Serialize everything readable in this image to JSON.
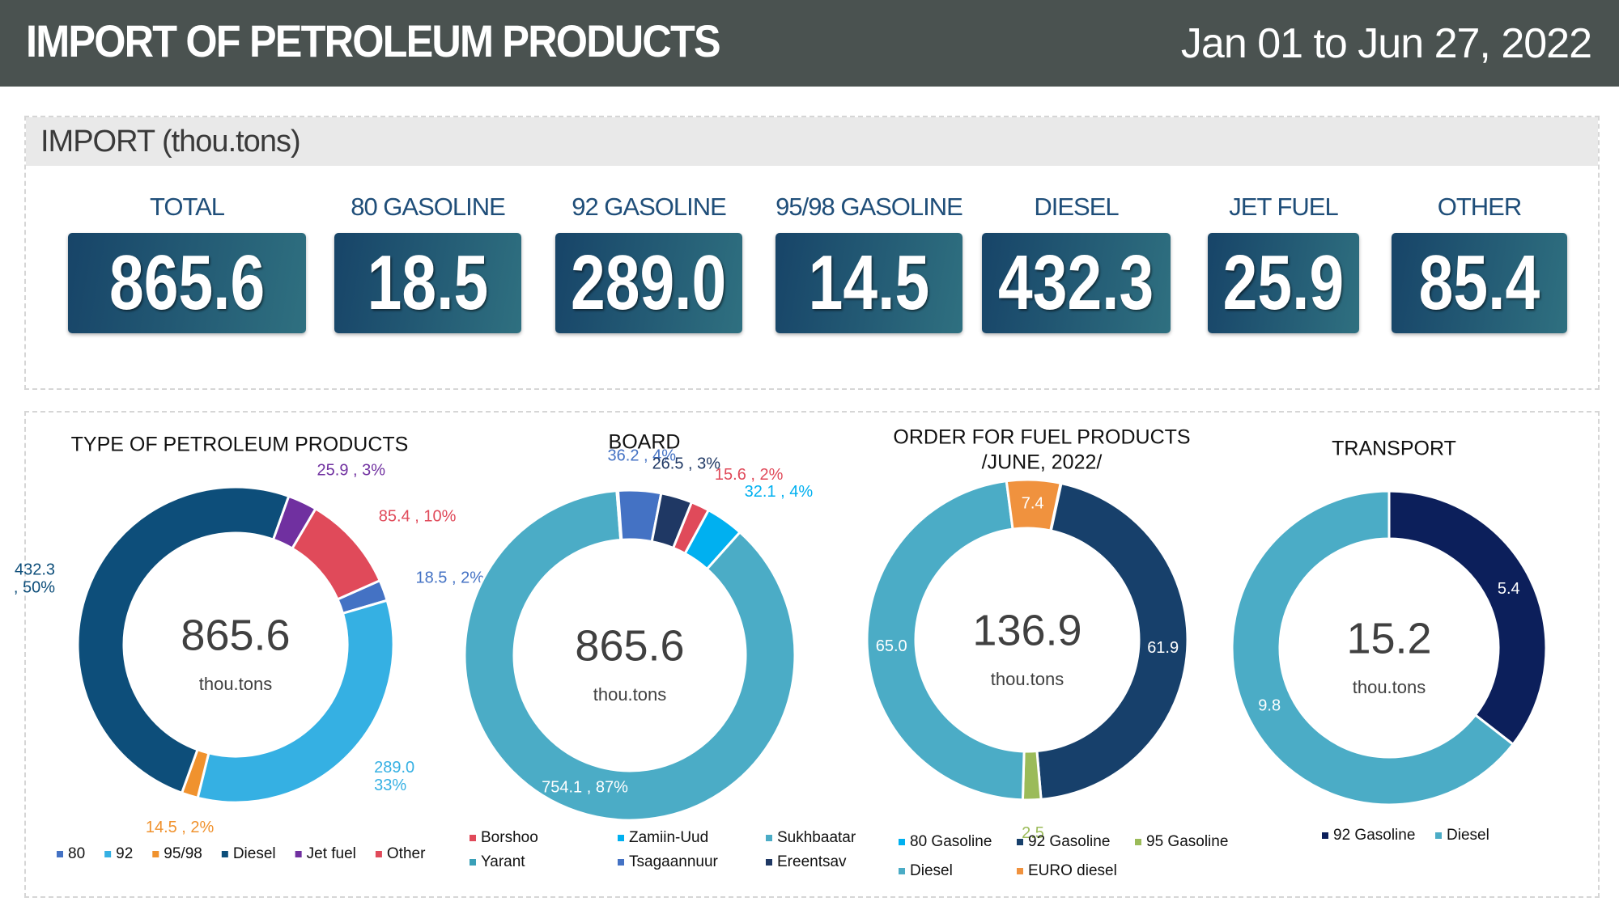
{
  "header": {
    "title": "IMPORT OF PETROLEUM PRODUCTS",
    "date_range": "Jan 01 to Jun 27, 2022"
  },
  "import_section": {
    "title": "IMPORT (thou.tons)",
    "kpis": [
      {
        "label": "TOTAL",
        "value": "865.6"
      },
      {
        "label": "80 GASOLINE",
        "value": "18.5"
      },
      {
        "label": "92 GASOLINE",
        "value": "289.0"
      },
      {
        "label": "95/98 GASOLINE",
        "value": "14.5"
      },
      {
        "label": "DIESEL",
        "value": "432.3"
      },
      {
        "label": "JET FUEL",
        "value": "25.9"
      },
      {
        "label": "OTHER",
        "value": "85.4"
      }
    ]
  },
  "chart_data": [
    {
      "type": "donut",
      "title": "TYPE OF PETROLEUM PRODUCTS",
      "center_value": "865.6",
      "center_label": "thou.tons",
      "categories": [
        "80",
        "92",
        "95/98",
        "Diesel",
        "Jet fuel",
        "Other"
      ],
      "values": [
        18.5,
        289.0,
        14.5,
        432.3,
        25.9,
        85.4
      ],
      "value_labels": [
        "18.5 , 2%",
        "289.0\n33%",
        "14.5 , 2%",
        "432.3\n, 50%",
        "25.9 , 3%",
        "85.4 , 10%"
      ],
      "colors": [
        "#4472c4",
        "#35b0e3",
        "#f0922e",
        "#0d4e7a",
        "#7030a0",
        "#e04a5a"
      ]
    },
    {
      "type": "donut",
      "title": "BOARD",
      "center_value": "865.6",
      "center_label": "thou.tons",
      "categories": [
        "Borshoo",
        "Zamiin-Uud",
        "Sukhbaatar",
        "Yarant",
        "Tsagaannuur",
        "Ereentsav"
      ],
      "values": [
        15.6,
        32.1,
        754.1,
        1.1,
        36.2,
        26.5
      ],
      "value_labels": [
        "15.6 , 2%",
        "32.1 , 4%",
        "754.1 , 87%",
        null,
        "36.2 , 4%",
        "26.5 , 3%"
      ],
      "colors": [
        "#e04a5a",
        "#00b0f0",
        "#4bacc6",
        "#3aa0b8",
        "#4472c4",
        "#1f3864"
      ]
    },
    {
      "type": "donut",
      "title": "ORDER FOR FUEL PRODUCTS",
      "subtitle": "/JUNE, 2022/",
      "center_value": "136.9",
      "center_label": "thou.tons",
      "categories": [
        "80 Gasoline",
        "92 Gasoline",
        "95 Gasoline",
        "Diesel",
        "EURO diesel"
      ],
      "values": [
        0.1,
        61.9,
        2.5,
        65.0,
        7.4
      ],
      "value_labels": [
        null,
        "61.9",
        "2.5",
        "65.0",
        "7.4"
      ],
      "colors": [
        "#00b0f0",
        "#17406b",
        "#9bbb59",
        "#4bacc6",
        "#f0923e"
      ]
    },
    {
      "type": "donut",
      "title": "TRANSPORT",
      "center_value": "15.2",
      "center_label": "thou.tons",
      "categories": [
        "92 Gasoline",
        "Diesel"
      ],
      "values": [
        5.4,
        9.8
      ],
      "value_labels": [
        "5.4",
        "9.8"
      ],
      "colors": [
        "#0c1f5b",
        "#4bacc6"
      ]
    }
  ]
}
